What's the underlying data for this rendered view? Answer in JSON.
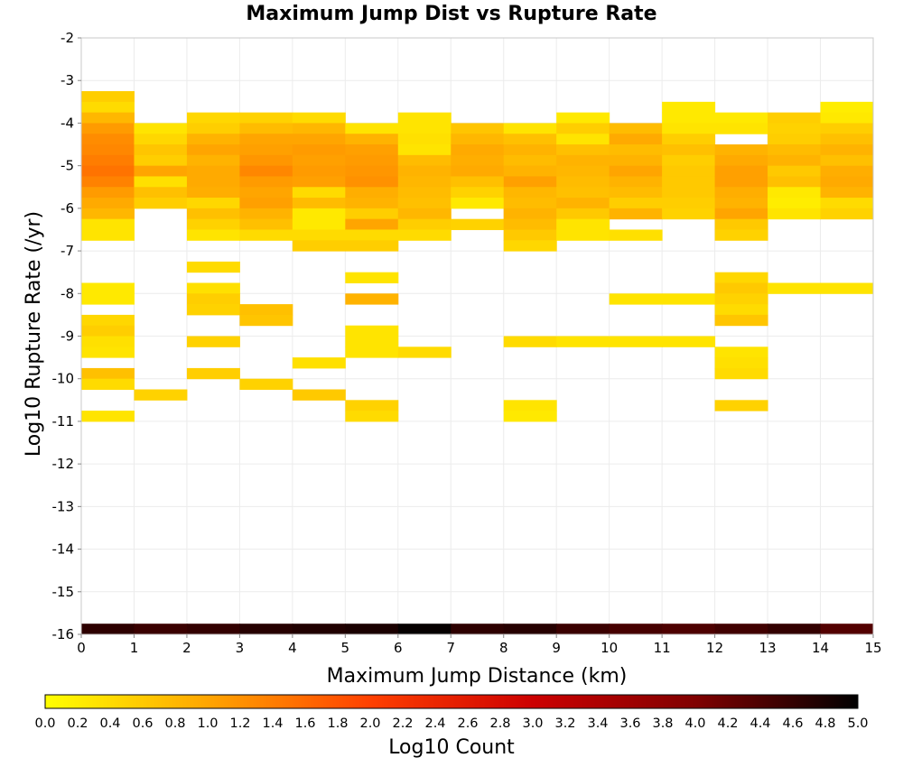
{
  "chart_data": {
    "type": "heatmap",
    "title": "Maximum Jump Dist vs Rupture Rate",
    "xlabel": "Maximum Jump Distance (km)",
    "ylabel": "Log10 Rupture Rate (/yr)",
    "xlim": [
      0,
      15
    ],
    "ylim": [
      -16,
      -2
    ],
    "x_ticks": [
      "0",
      "1",
      "2",
      "3",
      "4",
      "5",
      "6",
      "7",
      "8",
      "9",
      "10",
      "11",
      "12",
      "13",
      "14",
      "15"
    ],
    "y_ticks": [
      "-2",
      "-3",
      "-4",
      "-5",
      "-6",
      "-7",
      "-8",
      "-9",
      "-10",
      "-11",
      "-12",
      "-13",
      "-14",
      "-15",
      "-16"
    ],
    "grid": true,
    "bin_width_x": 1,
    "bin_height_y": 0.25,
    "colorbar": {
      "label": "Log10 Count",
      "range": [
        0,
        5
      ],
      "ticks": [
        "0.0",
        "0.2",
        "0.4",
        "0.6",
        "0.8",
        "1.0",
        "1.2",
        "1.4",
        "1.6",
        "1.8",
        "2.0",
        "2.2",
        "2.4",
        "2.6",
        "2.8",
        "3.0",
        "3.2",
        "3.4",
        "3.6",
        "3.8",
        "4.0",
        "4.2",
        "4.4",
        "4.6",
        "4.8",
        "5.0"
      ],
      "colors": [
        "#ffff00",
        "#ffa500",
        "#ff4000",
        "#cc0000",
        "#800000",
        "#000000"
      ]
    },
    "cells": [
      [
        0,
        -3.25,
        0.55
      ],
      [
        0,
        -3.5,
        0.4
      ],
      [
        0,
        -3.75,
        0.8
      ],
      [
        0,
        -4,
        1.1
      ],
      [
        0,
        -4.25,
        1.25
      ],
      [
        0,
        -4.5,
        1.3
      ],
      [
        0,
        -4.75,
        1.4
      ],
      [
        0,
        -5,
        1.5
      ],
      [
        0,
        -5.25,
        1.35
      ],
      [
        0,
        -5.5,
        1.1
      ],
      [
        0,
        -5.75,
        0.95
      ],
      [
        0,
        -6,
        0.8
      ],
      [
        0,
        -6.25,
        0.3
      ],
      [
        0,
        -6.5,
        0.3
      ],
      [
        0,
        -7.75,
        0.25
      ],
      [
        0,
        -8,
        0.25
      ],
      [
        0,
        -8.5,
        0.45
      ],
      [
        0,
        -8.75,
        0.55
      ],
      [
        0,
        -9,
        0.35
      ],
      [
        0,
        -9.25,
        0.3
      ],
      [
        0,
        -9.75,
        0.7
      ],
      [
        0,
        -10,
        0.4
      ],
      [
        0,
        -10.75,
        0.3
      ],
      [
        1,
        -4,
        0.3
      ],
      [
        1,
        -4.25,
        0.45
      ],
      [
        1,
        -4.5,
        0.65
      ],
      [
        1,
        -4.75,
        0.55
      ],
      [
        1,
        -5,
        1.0
      ],
      [
        1,
        -5.25,
        0.35
      ],
      [
        1,
        -5.5,
        0.7
      ],
      [
        1,
        -5.75,
        0.55
      ],
      [
        1,
        -10.25,
        0.5
      ],
      [
        2,
        -3.75,
        0.45
      ],
      [
        2,
        -4,
        0.55
      ],
      [
        2,
        -4.25,
        0.85
      ],
      [
        2,
        -4.5,
        1.0
      ],
      [
        2,
        -4.75,
        0.85
      ],
      [
        2,
        -5,
        0.95
      ],
      [
        2,
        -5.25,
        0.95
      ],
      [
        2,
        -5.5,
        0.9
      ],
      [
        2,
        -5.75,
        0.45
      ],
      [
        2,
        -6,
        0.7
      ],
      [
        2,
        -6.25,
        0.5
      ],
      [
        2,
        -6.5,
        0.3
      ],
      [
        2,
        -7.25,
        0.4
      ],
      [
        2,
        -7.75,
        0.35
      ],
      [
        2,
        -8,
        0.55
      ],
      [
        2,
        -8.25,
        0.5
      ],
      [
        2,
        -9,
        0.5
      ],
      [
        2,
        -9.75,
        0.55
      ],
      [
        3,
        -3.75,
        0.5
      ],
      [
        3,
        -4,
        0.75
      ],
      [
        3,
        -4.25,
        1.0
      ],
      [
        3,
        -4.5,
        1.05
      ],
      [
        3,
        -4.75,
        1.15
      ],
      [
        3,
        -5,
        1.3
      ],
      [
        3,
        -5.25,
        1.1
      ],
      [
        3,
        -5.5,
        1.0
      ],
      [
        3,
        -5.75,
        1.05
      ],
      [
        3,
        -6,
        0.85
      ],
      [
        3,
        -6.25,
        0.7
      ],
      [
        3,
        -6.5,
        0.4
      ],
      [
        3,
        -8.25,
        0.7
      ],
      [
        3,
        -8.5,
        0.65
      ],
      [
        3,
        -10,
        0.5
      ],
      [
        4,
        -3.75,
        0.4
      ],
      [
        4,
        -4,
        0.8
      ],
      [
        4,
        -4.25,
        1.0
      ],
      [
        4,
        -4.5,
        1.1
      ],
      [
        4,
        -4.75,
        1.05
      ],
      [
        4,
        -5,
        1.1
      ],
      [
        4,
        -5.25,
        1.05
      ],
      [
        4,
        -5.5,
        0.4
      ],
      [
        4,
        -5.75,
        0.75
      ],
      [
        4,
        -6,
        0.25
      ],
      [
        4,
        -6.25,
        0.25
      ],
      [
        4,
        -6.5,
        0.4
      ],
      [
        4,
        -6.75,
        0.55
      ],
      [
        4,
        -9.5,
        0.35
      ],
      [
        4,
        -10.25,
        0.6
      ],
      [
        5,
        -4,
        0.3
      ],
      [
        5,
        -4.25,
        0.85
      ],
      [
        5,
        -4.5,
        1.05
      ],
      [
        5,
        -4.75,
        1.1
      ],
      [
        5,
        -5,
        1.15
      ],
      [
        5,
        -5.25,
        1.2
      ],
      [
        5,
        -5.5,
        0.9
      ],
      [
        5,
        -5.75,
        0.85
      ],
      [
        5,
        -6,
        0.55
      ],
      [
        5,
        -6.25,
        1.0
      ],
      [
        5,
        -6.5,
        0.4
      ],
      [
        5,
        -6.75,
        0.55
      ],
      [
        5,
        -7.5,
        0.3
      ],
      [
        5,
        -8,
        0.85
      ],
      [
        5,
        -8.75,
        0.3
      ],
      [
        5,
        -9,
        0.3
      ],
      [
        5,
        -9.25,
        0.3
      ],
      [
        5,
        -10.5,
        0.5
      ],
      [
        5,
        -10.75,
        0.4
      ],
      [
        6,
        -3.75,
        0.3
      ],
      [
        6,
        -4,
        0.3
      ],
      [
        6,
        -4.25,
        0.35
      ],
      [
        6,
        -4.5,
        0.3
      ],
      [
        6,
        -4.75,
        0.75
      ],
      [
        6,
        -5,
        0.85
      ],
      [
        6,
        -5.25,
        0.8
      ],
      [
        6,
        -5.5,
        0.75
      ],
      [
        6,
        -5.75,
        0.7
      ],
      [
        6,
        -6,
        0.8
      ],
      [
        6,
        -6.25,
        0.55
      ],
      [
        6,
        -6.5,
        0.4
      ],
      [
        6,
        -9.25,
        0.4
      ],
      [
        7,
        -4,
        0.65
      ],
      [
        7,
        -4.25,
        0.8
      ],
      [
        7,
        -4.5,
        0.95
      ],
      [
        7,
        -4.75,
        0.9
      ],
      [
        7,
        -5,
        0.95
      ],
      [
        7,
        -5.25,
        0.7
      ],
      [
        7,
        -5.5,
        0.5
      ],
      [
        7,
        -5.75,
        0.25
      ],
      [
        7,
        -6.25,
        0.5
      ],
      [
        8,
        -4,
        0.3
      ],
      [
        8,
        -4.25,
        0.7
      ],
      [
        8,
        -4.5,
        0.85
      ],
      [
        8,
        -4.75,
        0.75
      ],
      [
        8,
        -5,
        0.85
      ],
      [
        8,
        -5.25,
        1.05
      ],
      [
        8,
        -5.5,
        0.8
      ],
      [
        8,
        -5.75,
        0.75
      ],
      [
        8,
        -6,
        0.85
      ],
      [
        8,
        -6.25,
        0.75
      ],
      [
        8,
        -6.5,
        0.6
      ],
      [
        8,
        -6.75,
        0.45
      ],
      [
        8,
        -9,
        0.4
      ],
      [
        8,
        -10.5,
        0.3
      ],
      [
        8,
        -10.75,
        0.25
      ],
      [
        9,
        -3.75,
        0.25
      ],
      [
        9,
        -4,
        0.55
      ],
      [
        9,
        -4.25,
        0.3
      ],
      [
        9,
        -4.5,
        0.7
      ],
      [
        9,
        -4.75,
        0.85
      ],
      [
        9,
        -5,
        0.8
      ],
      [
        9,
        -5.25,
        0.75
      ],
      [
        9,
        -5.5,
        0.7
      ],
      [
        9,
        -5.75,
        0.85
      ],
      [
        9,
        -6,
        0.6
      ],
      [
        9,
        -6.25,
        0.3
      ],
      [
        9,
        -6.5,
        0.3
      ],
      [
        9,
        -9,
        0.3
      ],
      [
        10,
        -4,
        0.75
      ],
      [
        10,
        -4.25,
        0.95
      ],
      [
        10,
        -4.5,
        0.75
      ],
      [
        10,
        -4.75,
        0.85
      ],
      [
        10,
        -5,
        1.0
      ],
      [
        10,
        -5.25,
        0.85
      ],
      [
        10,
        -5.5,
        0.75
      ],
      [
        10,
        -5.75,
        0.55
      ],
      [
        10,
        -6,
        0.85
      ],
      [
        10,
        -6.5,
        0.35
      ],
      [
        10,
        -8,
        0.3
      ],
      [
        10,
        -9,
        0.3
      ],
      [
        11,
        -3.5,
        0.25
      ],
      [
        11,
        -3.75,
        0.25
      ],
      [
        11,
        -4,
        0.3
      ],
      [
        11,
        -4.25,
        0.55
      ],
      [
        11,
        -4.5,
        0.7
      ],
      [
        11,
        -4.75,
        0.55
      ],
      [
        11,
        -5,
        0.6
      ],
      [
        11,
        -5.25,
        0.6
      ],
      [
        11,
        -5.5,
        0.6
      ],
      [
        11,
        -5.75,
        0.55
      ],
      [
        11,
        -6,
        0.5
      ],
      [
        11,
        -8,
        0.3
      ],
      [
        11,
        -9,
        0.3
      ],
      [
        12,
        -3.75,
        0.25
      ],
      [
        12,
        -4,
        0.3
      ],
      [
        12,
        -4.5,
        0.85
      ],
      [
        12,
        -4.75,
        0.95
      ],
      [
        12,
        -5,
        1.05
      ],
      [
        12,
        -5.25,
        1.05
      ],
      [
        12,
        -5.5,
        0.9
      ],
      [
        12,
        -5.75,
        0.85
      ],
      [
        12,
        -6,
        1.0
      ],
      [
        12,
        -6.25,
        0.6
      ],
      [
        12,
        -6.5,
        0.5
      ],
      [
        12,
        -7.5,
        0.45
      ],
      [
        12,
        -7.75,
        0.6
      ],
      [
        12,
        -8,
        0.5
      ],
      [
        12,
        -8.25,
        0.4
      ],
      [
        12,
        -8.5,
        0.65
      ],
      [
        12,
        -9.25,
        0.3
      ],
      [
        12,
        -9.5,
        0.35
      ],
      [
        12,
        -9.75,
        0.4
      ],
      [
        12,
        -10.5,
        0.5
      ],
      [
        13,
        -3.75,
        0.55
      ],
      [
        13,
        -4,
        0.5
      ],
      [
        13,
        -4.25,
        0.55
      ],
      [
        13,
        -4.5,
        0.75
      ],
      [
        13,
        -4.75,
        0.85
      ],
      [
        13,
        -5,
        0.6
      ],
      [
        13,
        -5.25,
        0.7
      ],
      [
        13,
        -5.5,
        0.25
      ],
      [
        13,
        -5.75,
        0.2
      ],
      [
        13,
        -6,
        0.3
      ],
      [
        13,
        -7.75,
        0.3
      ],
      [
        14,
        -3.5,
        0.2
      ],
      [
        14,
        -3.75,
        0.25
      ],
      [
        14,
        -4,
        0.55
      ],
      [
        14,
        -4.25,
        0.7
      ],
      [
        14,
        -4.5,
        0.85
      ],
      [
        14,
        -4.75,
        0.7
      ],
      [
        14,
        -5,
        0.9
      ],
      [
        14,
        -5.25,
        0.95
      ],
      [
        14,
        -5.5,
        0.85
      ],
      [
        14,
        -5.75,
        0.4
      ],
      [
        14,
        -6,
        0.5
      ],
      [
        14,
        -7.75,
        0.3
      ]
    ],
    "bottom_row_y": -16,
    "bottom_row_values": [
      4.65,
      4.55,
      4.6,
      4.7,
      4.75,
      4.8,
      4.95,
      4.65,
      4.7,
      4.55,
      4.45,
      4.4,
      4.5,
      4.6,
      4.35
    ]
  }
}
